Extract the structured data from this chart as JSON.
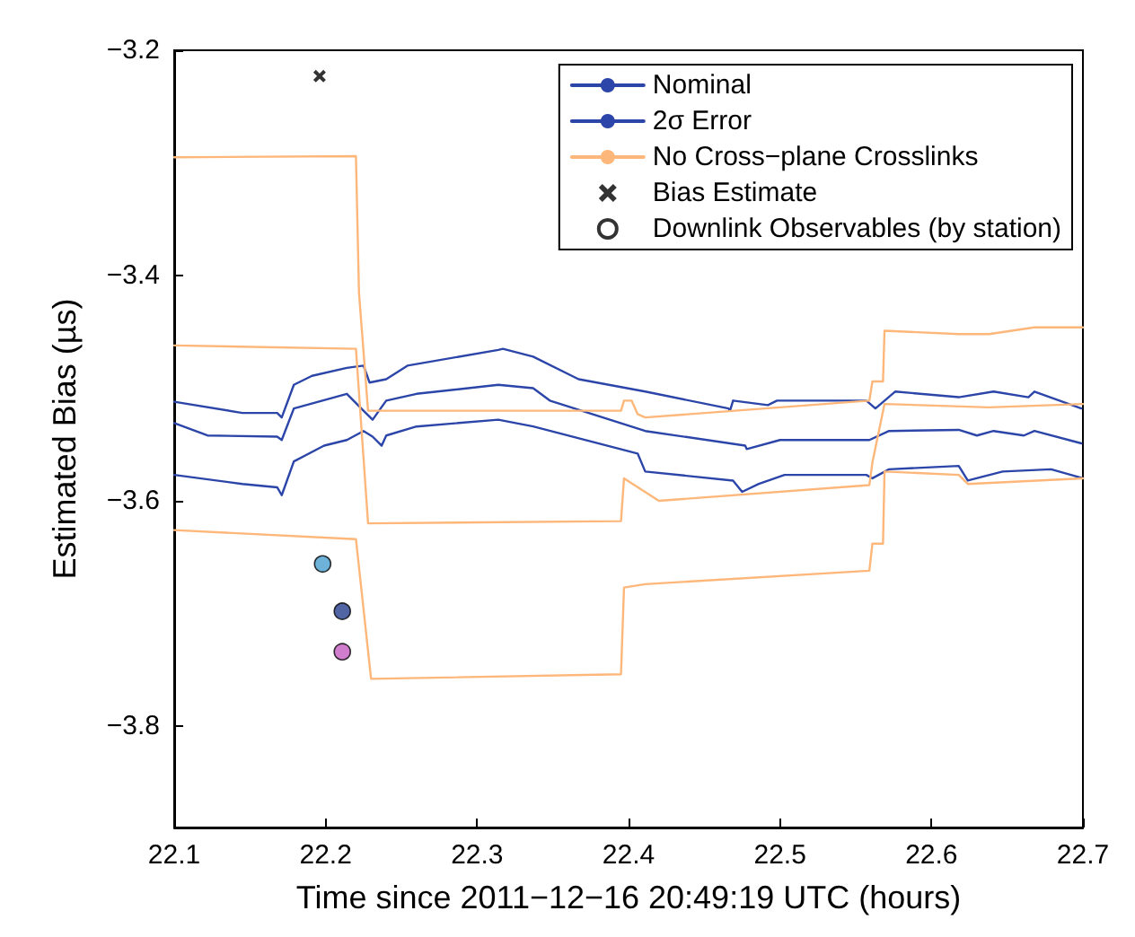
{
  "chart_data": {
    "type": "line",
    "xlabel": "Time since 2011−12−16 20:49:19 UTC (hours)",
    "ylabel": "Estimated Bias (µs)",
    "xlim": [
      22.1,
      22.7
    ],
    "xticks": [
      22.1,
      22.2,
      22.3,
      22.4,
      22.5,
      22.6,
      22.7
    ],
    "ylim": [
      -3.89,
      -3.2
    ],
    "yticks": [
      {
        "value": -3.8,
        "label": "−3.8"
      },
      {
        "value": -3.6,
        "label": "−3.6"
      },
      {
        "value": -3.4,
        "label": "−3.4"
      },
      {
        "value": -3.2,
        "label": "−3.2"
      }
    ],
    "grid": false,
    "legend": "top right",
    "line_style": "solid",
    "series": [
      {
        "name": "Nominal",
        "color": "#2b45a8",
        "x": [
          22.1,
          22.122,
          22.168,
          22.171,
          22.179,
          22.214,
          22.225,
          22.231,
          22.24,
          22.26,
          22.314,
          22.337,
          22.348,
          22.411,
          22.477,
          22.478,
          22.5,
          22.559,
          22.572,
          22.618,
          22.63,
          22.641,
          22.661,
          22.668,
          22.699
        ],
        "values": [
          -3.531,
          -3.542,
          -3.543,
          -3.546,
          -3.518,
          -3.505,
          -3.52,
          -3.528,
          -3.511,
          -3.505,
          -3.497,
          -3.5,
          -3.511,
          -3.538,
          -3.551,
          -3.554,
          -3.546,
          -3.546,
          -3.538,
          -3.537,
          -3.542,
          -3.538,
          -3.542,
          -3.538,
          -3.549
        ]
      },
      {
        "name": "2σ Error",
        "color": "#2b45a8",
        "x": [
          22.1,
          22.145,
          22.168,
          22.171,
          22.179,
          22.191,
          22.214,
          22.225,
          22.229,
          22.24,
          22.254,
          22.314,
          22.317,
          22.337,
          22.367,
          22.411,
          22.466,
          22.467,
          22.469,
          22.492,
          22.498,
          22.557,
          22.563,
          22.576,
          22.618,
          22.641,
          22.664,
          22.668,
          22.699
        ],
        "values": [
          -3.512,
          -3.522,
          -3.522,
          -3.526,
          -3.497,
          -3.489,
          -3.482,
          -3.48,
          -3.495,
          -3.492,
          -3.48,
          -3.466,
          -3.465,
          -3.472,
          -3.492,
          -3.503,
          -3.518,
          -3.52,
          -3.511,
          -3.515,
          -3.511,
          -3.511,
          -3.518,
          -3.503,
          -3.508,
          -3.503,
          -3.508,
          -3.503,
          -3.518
        ]
      },
      {
        "color": "#2b45a8",
        "x": [
          22.1,
          22.145,
          22.168,
          22.171,
          22.179,
          22.199,
          22.214,
          22.225,
          22.231,
          22.237,
          22.24,
          22.26,
          22.314,
          22.337,
          22.406,
          22.411,
          22.469,
          22.475,
          22.486,
          22.503,
          22.557,
          22.561,
          22.572,
          22.618,
          22.624,
          22.647,
          22.679,
          22.7
        ],
        "values": [
          -3.577,
          -3.585,
          -3.588,
          -3.595,
          -3.565,
          -3.551,
          -3.546,
          -3.538,
          -3.543,
          -3.551,
          -3.542,
          -3.534,
          -3.528,
          -3.534,
          -3.558,
          -3.574,
          -3.582,
          -3.592,
          -3.585,
          -3.577,
          -3.577,
          -3.58,
          -3.572,
          -3.569,
          -3.582,
          -3.574,
          -3.572,
          -3.58
        ]
      },
      {
        "name": "No Cross−plane Crosslinks",
        "color": "#fdb77a",
        "x": [
          22.1,
          22.22,
          22.222,
          22.228,
          22.395,
          22.397,
          22.402,
          22.406,
          22.411,
          22.559,
          22.561,
          22.568,
          22.569,
          22.618,
          22.638,
          22.668,
          22.7
        ],
        "values": [
          -3.295,
          -3.294,
          -3.415,
          -3.52,
          -3.52,
          -3.511,
          -3.511,
          -3.523,
          -3.526,
          -3.511,
          -3.494,
          -3.494,
          -3.449,
          -3.452,
          -3.452,
          -3.446,
          -3.446
        ]
      },
      {
        "color": "#fdb77a",
        "x": [
          22.1,
          22.22,
          22.228,
          22.395,
          22.397,
          22.42,
          22.559,
          22.561,
          22.569,
          22.638,
          22.7
        ],
        "values": [
          -3.462,
          -3.465,
          -3.62,
          -3.618,
          -3.58,
          -3.6,
          -3.586,
          -3.566,
          -3.514,
          -3.517,
          -3.514
        ]
      },
      {
        "color": "#fdb77a",
        "x": [
          22.1,
          22.22,
          22.23,
          22.395,
          22.397,
          22.411,
          22.559,
          22.561,
          22.568,
          22.569,
          22.618,
          22.624,
          22.7
        ],
        "values": [
          -3.626,
          -3.634,
          -3.758,
          -3.754,
          -3.677,
          -3.674,
          -3.662,
          -3.638,
          -3.638,
          -3.574,
          -3.577,
          -3.585,
          -3.58
        ]
      },
      {
        "name": "Bias Estimate",
        "type": "scatter",
        "marker": "cross",
        "color": "#000000",
        "x": [
          22.196
        ],
        "values": [
          -3.223
        ]
      },
      {
        "name": "Downlink Observables (by station)",
        "type": "scatter",
        "marker": "circle",
        "color": "#ffffff",
        "colors": [
          "#4a9fd0",
          "#253f8f",
          "#c45cc0"
        ],
        "x": [
          22.198,
          22.211,
          22.211
        ],
        "values": [
          -3.656,
          -3.698,
          -3.734
        ]
      }
    ]
  }
}
